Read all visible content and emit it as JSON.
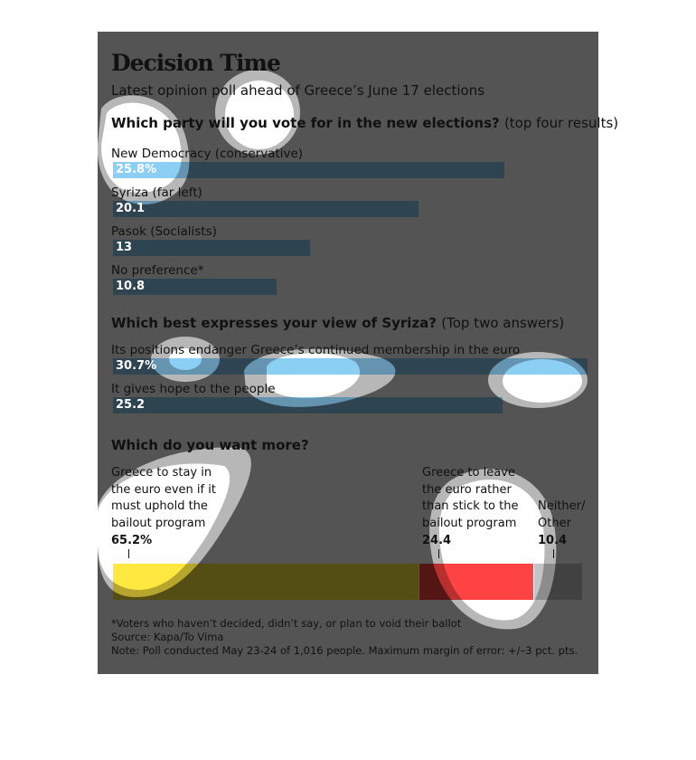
{
  "title": "Decision Time",
  "subtitle": "Latest opinion poll ahead of Greece’s June 17 elections",
  "chart_data": [
    {
      "type": "bar",
      "title": "Which party will you vote for in the new elections?",
      "note": "(top four results)",
      "categories": [
        "New Democracy (conservative)",
        "Syriza (far left)",
        "Pasok (Socialists)",
        "No preference*"
      ],
      "values": [
        25.8,
        20.1,
        13,
        10.8
      ],
      "value_labels": [
        "25.8%",
        "20.1",
        "13",
        "10.8"
      ],
      "color": "#8ccff5",
      "orientation": "horizontal"
    },
    {
      "type": "bar",
      "title": "Which best expresses your view of Syriza?",
      "note": "(Top two answers)",
      "categories": [
        "Its positions endanger Greece’s continued membership in the euro",
        "It gives hope to the people"
      ],
      "values": [
        30.7,
        25.2
      ],
      "value_labels": [
        "30.7%",
        "25.2"
      ],
      "color": "#8ccff5",
      "orientation": "horizontal"
    },
    {
      "type": "bar",
      "subtype": "stacked",
      "title": "Which do you want more?",
      "categories": [
        "Greece to stay in the euro even if it must uphold the bailout program",
        "Greece to leave the euro rather than stick to the bailout program",
        "Neither/ Other"
      ],
      "values": [
        65.2,
        24.4,
        10.4
      ],
      "value_labels": [
        "65.2%",
        "24.4",
        "10.4"
      ],
      "colors": [
        "#ffe83f",
        "#ff4242",
        "#c4c4c4"
      ]
    }
  ],
  "footnotes": [
    "*Voters who haven’t decided, didn’t say, or plan to void their ballot",
    "Source: Kapa/To Vima",
    "Note: Poll conducted May 23-24 of 1,016 people. Maximum margin of error: +/–3 pct. pts."
  ]
}
